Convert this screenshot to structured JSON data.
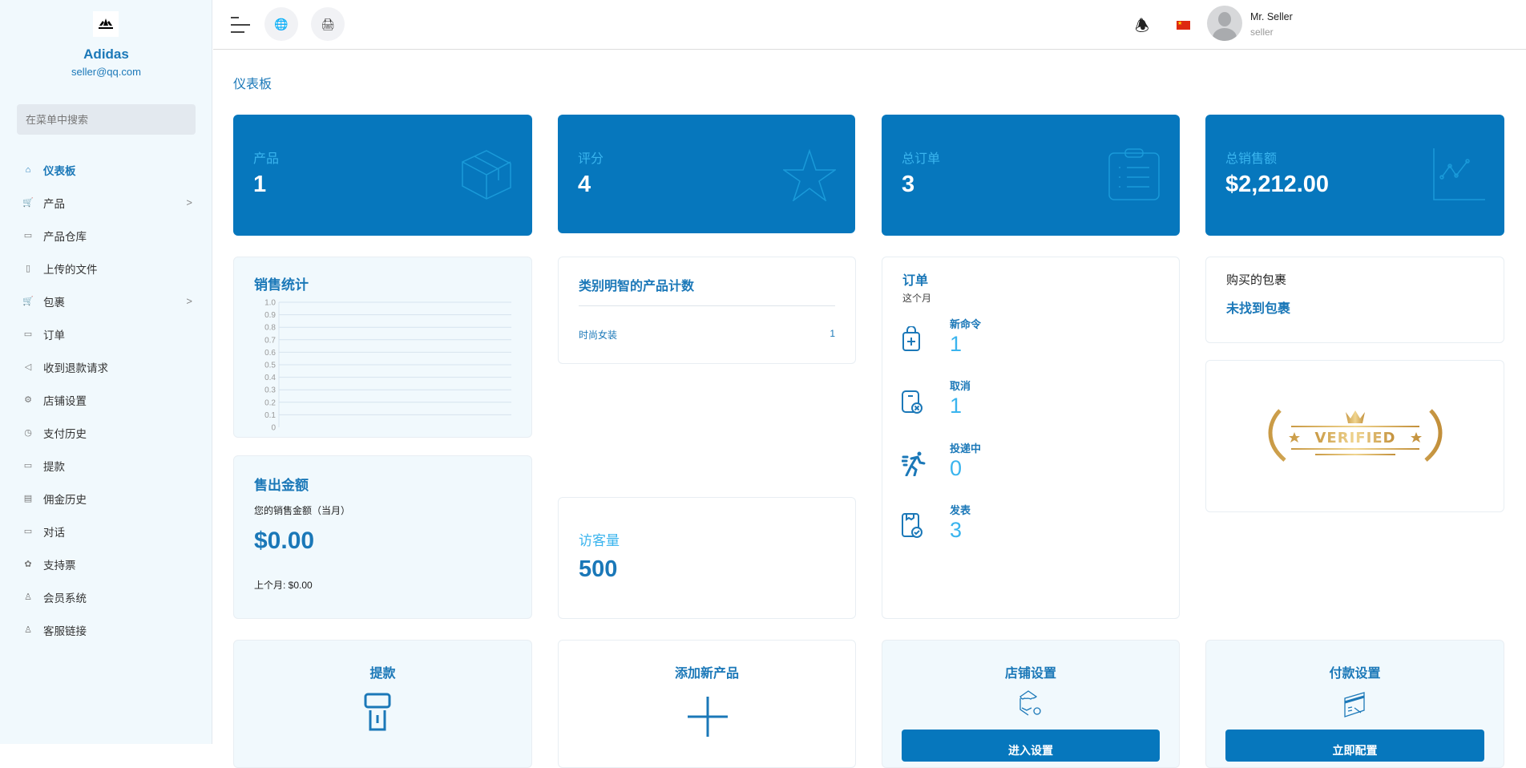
{
  "sidebar": {
    "brand": "Adidas",
    "email": "seller@qq.com",
    "logo_text": "adidas",
    "search_placeholder": "在菜单中搜索",
    "items": [
      {
        "label": "仪表板",
        "icon": "home-icon",
        "active": true
      },
      {
        "label": "产品",
        "icon": "cart-icon",
        "submenu": true
      },
      {
        "label": "产品仓库",
        "icon": "warehouse-icon"
      },
      {
        "label": "上传的文件",
        "icon": "folder-icon"
      },
      {
        "label": "包裹",
        "icon": "cart-icon",
        "submenu": true
      },
      {
        "label": "订单",
        "icon": "ticket-icon"
      },
      {
        "label": "收到退款请求",
        "icon": "rewind-icon"
      },
      {
        "label": "店铺设置",
        "icon": "gear-icon"
      },
      {
        "label": "支付历史",
        "icon": "history-icon"
      },
      {
        "label": "提款",
        "icon": "money-icon"
      },
      {
        "label": "佣金历史",
        "icon": "document-icon"
      },
      {
        "label": "对话",
        "icon": "chat-icon"
      },
      {
        "label": "支持票",
        "icon": "support-icon"
      },
      {
        "label": "会员系统",
        "icon": "user-icon"
      },
      {
        "label": "客服链接",
        "icon": "user-icon"
      }
    ]
  },
  "header": {
    "user_name": "Mr. Seller",
    "user_role": "seller",
    "language": "zh-CN"
  },
  "breadcrumb": "仪表板",
  "stats": [
    {
      "label": "产品",
      "value": "1",
      "icon": "box-icon"
    },
    {
      "label": "评分",
      "value": "4",
      "icon": "star-icon"
    },
    {
      "label": "总订单",
      "value": "3",
      "icon": "clipboard-icon"
    },
    {
      "label": "总销售额",
      "value": "$2,212.00",
      "icon": "line-chart-icon"
    }
  ],
  "sales_stats": {
    "title": "销售统计"
  },
  "chart_data": {
    "type": "line",
    "title": "",
    "series": [],
    "ylim": [
      0,
      1.0
    ],
    "yticks": [
      "1.0",
      "0.9",
      "0.8",
      "0.7",
      "0.6",
      "0.5",
      "0.4",
      "0.3",
      "0.2",
      "0.1",
      "0"
    ],
    "grid": true
  },
  "category_count": {
    "title": "类别明智的产品计数",
    "rows": [
      {
        "name": "时尚女装",
        "count": "1"
      }
    ]
  },
  "orders": {
    "title": "订单",
    "subtitle": "这个月",
    "items": [
      {
        "label": "新命令",
        "value": "1"
      },
      {
        "label": "取消",
        "value": "1"
      },
      {
        "label": "投递中",
        "value": "0"
      },
      {
        "label": "发表",
        "value": "3"
      }
    ]
  },
  "packages": {
    "title": "购买的包裹",
    "value": "未找到包裹"
  },
  "verified": {
    "badge_text": "VERIFIED"
  },
  "sold_amount": {
    "title": "售出金额",
    "subtitle": "您的销售金额（当月）",
    "value": "$0.00",
    "last_month": "上个月: $0.00"
  },
  "visitors": {
    "label": "访客量",
    "value": "500"
  },
  "actions": [
    {
      "title": "提款"
    },
    {
      "title": "添加新产品"
    },
    {
      "title": "店铺设置",
      "button": "进入设置"
    },
    {
      "title": "付款设置",
      "button": "立即配置"
    }
  ],
  "colors": {
    "primary": "#0677bd",
    "accent": "#3ab4ee",
    "card_light": "#f1f9fd"
  }
}
